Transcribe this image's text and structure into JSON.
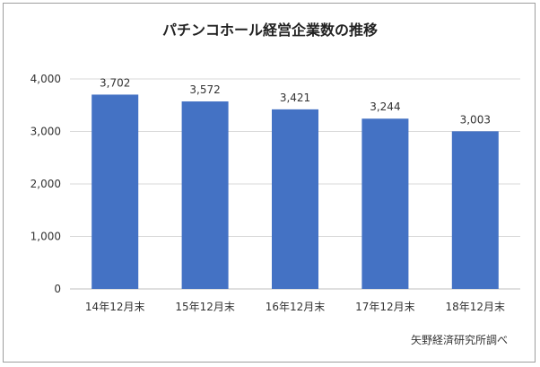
{
  "chart_data": {
    "type": "bar",
    "title": "パチンコホール経営企業数の推移",
    "categories": [
      "14年12月末",
      "15年12月末",
      "16年12月末",
      "17年12月末",
      "18年12月末"
    ],
    "values": [
      3702,
      3572,
      3421,
      3244,
      3003
    ],
    "data_labels": [
      "3,702",
      "3,572",
      "3,421",
      "3,244",
      "3,003"
    ],
    "y_ticks": [
      0,
      1000,
      2000,
      3000,
      4000
    ],
    "y_tick_labels": [
      "0",
      "1,000",
      "2,000",
      "3,000",
      "4,000"
    ],
    "ylim": [
      0,
      4000
    ],
    "xlabel": "",
    "ylabel": "",
    "grid": true,
    "legend": "none",
    "bar_color": "#4472c4",
    "grid_color": "#d9d9d9"
  },
  "source": "矢野経済研究所調べ"
}
